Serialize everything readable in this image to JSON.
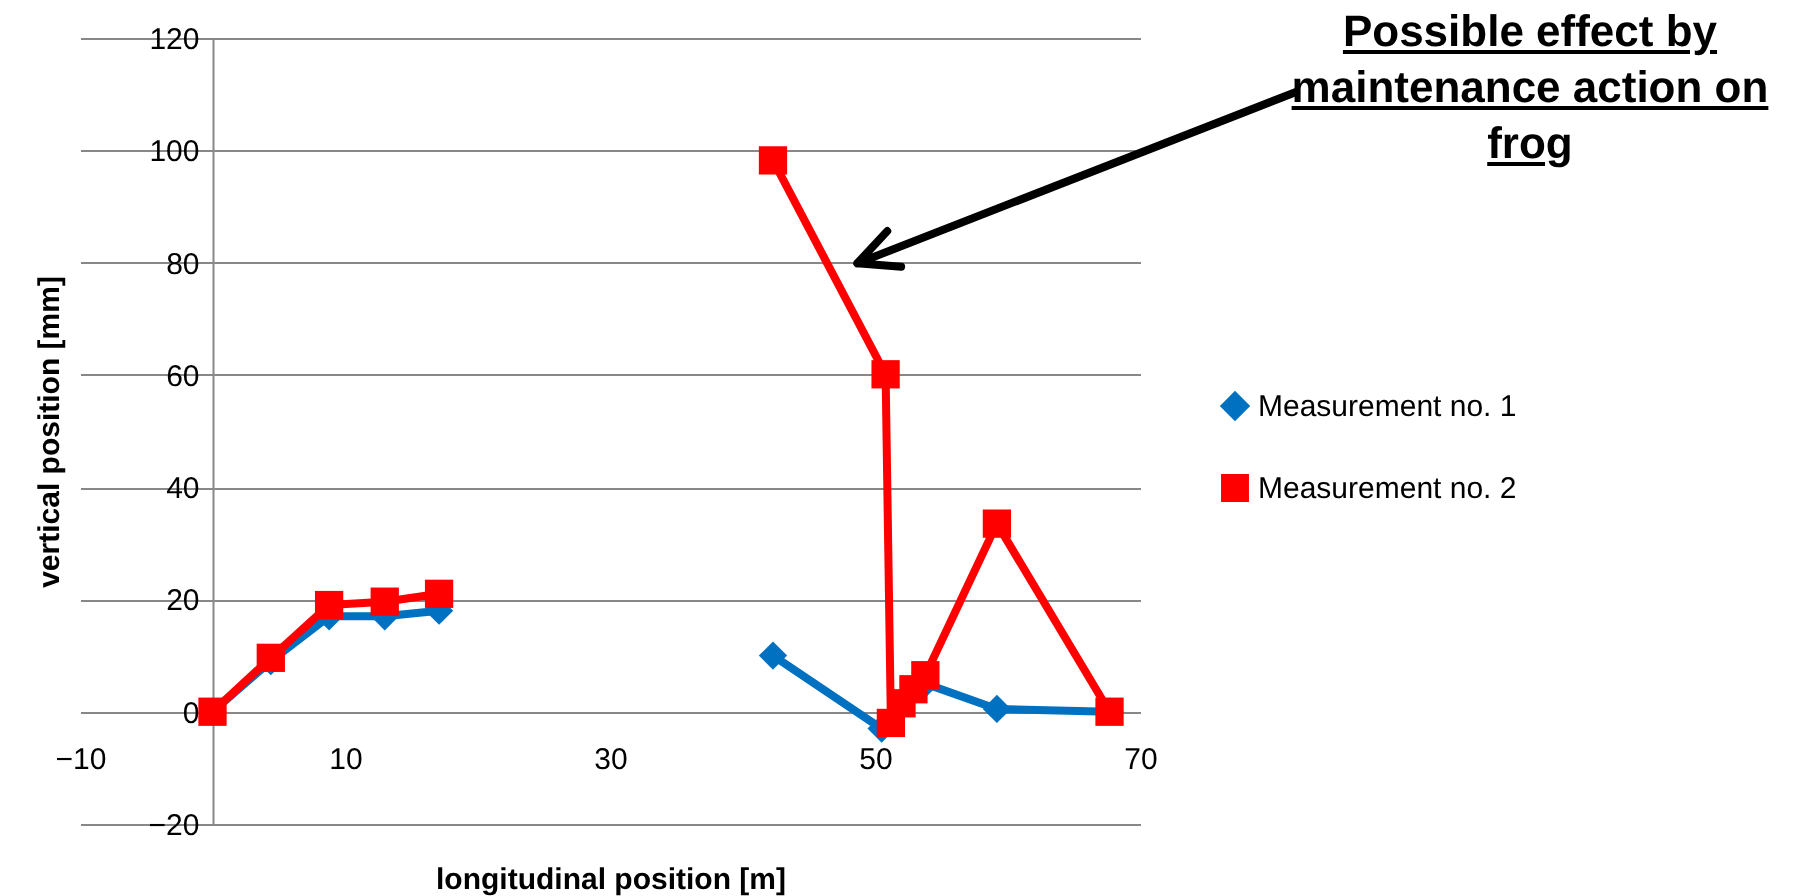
{
  "chart_data": {
    "type": "line",
    "xlabel": "longitudinal position [m]",
    "ylabel": "vertical position [mm]",
    "x": [
      0,
      4.4,
      8.8,
      13,
      17.1,
      null,
      42.3,
      50.5,
      53.8,
      59.2,
      67.7
    ],
    "series": [
      {
        "name": "Measurement no. 1",
        "color": "#0070c0",
        "marker": "diamond",
        "values": [
          0,
          9,
          17,
          17,
          18,
          null,
          10,
          -3,
          5,
          0.5,
          0
        ]
      },
      {
        "name": "Measurement no. 2",
        "color": "#ff0000",
        "marker": "square",
        "x": [
          0,
          4.4,
          8.8,
          13,
          17.1,
          null,
          42.3,
          50.8,
          51.2,
          52,
          52.9,
          53.8,
          59.2,
          67.7
        ],
        "values": [
          0,
          9.6,
          19,
          19.6,
          21,
          null,
          98.2,
          60.1,
          -2,
          1.5,
          4,
          6.5,
          33.5,
          0
        ]
      }
    ],
    "xlim": [
      -10,
      70
    ],
    "xticks": [
      -10,
      10,
      30,
      50,
      70
    ],
    "ylim": [
      -20,
      120
    ],
    "yticks": [
      -20,
      0,
      20,
      40,
      60,
      80,
      100,
      120
    ],
    "grid": "y",
    "legend": "right",
    "line_style": "solid",
    "annotations": [
      "Possible effect by maintenance action on frog"
    ]
  }
}
